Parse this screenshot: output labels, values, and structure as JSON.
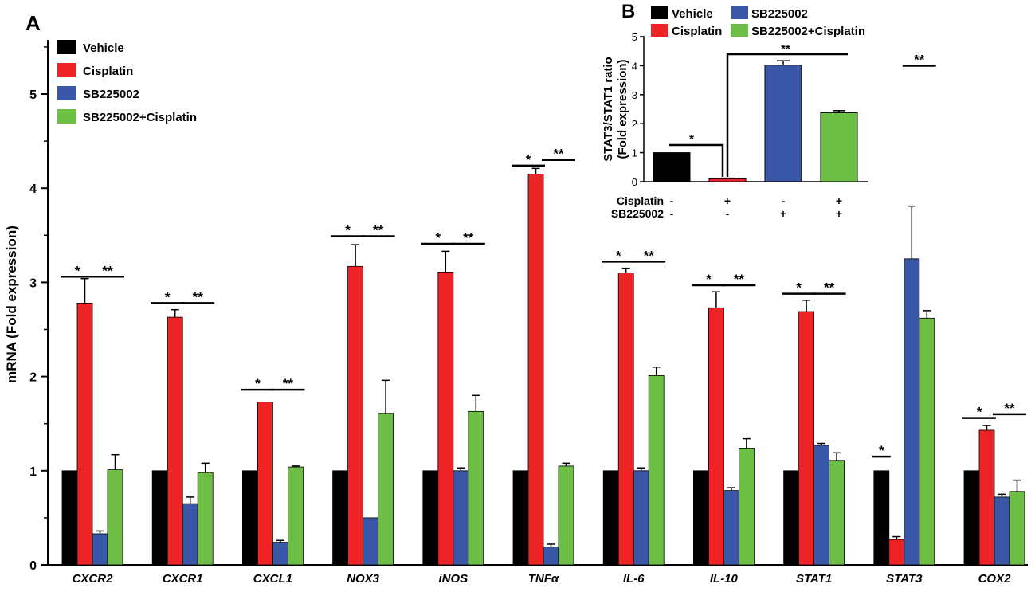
{
  "colors": {
    "vehicle": "#000000",
    "cisplatin": "#ee2326",
    "sb225002": "#3a56a6",
    "combo": "#6dbe45"
  },
  "chart_data": [
    {
      "panel": "A",
      "type": "bar",
      "ylabel": "mRNA  (Fold expression)",
      "ylim": [
        0,
        5.5
      ],
      "yticks": [
        0,
        1,
        2,
        3,
        4,
        5
      ],
      "legend_position": "top-left",
      "categories": [
        "CXCR2",
        "CXCR1",
        "CXCL1",
        "NOX3",
        "iNOS",
        "TNFα",
        "IL-6",
        "IL-10",
        "STAT1",
        "STAT3",
        "COX2"
      ],
      "series": [
        {
          "name": "Vehicle",
          "color_key": "vehicle",
          "values": [
            1,
            1,
            1,
            1,
            1,
            1,
            1,
            1,
            1,
            1,
            1
          ],
          "errors": [
            0,
            0,
            0,
            0,
            0,
            0,
            0,
            0,
            0,
            0,
            0
          ]
        },
        {
          "name": "Cisplatin",
          "color_key": "cisplatin",
          "values": [
            2.78,
            2.63,
            1.73,
            3.17,
            3.11,
            4.15,
            3.1,
            2.73,
            2.69,
            0.27,
            1.43
          ],
          "errors": [
            0.26,
            0.08,
            0.0,
            0.23,
            0.22,
            0.06,
            0.05,
            0.17,
            0.12,
            0.03,
            0.05
          ]
        },
        {
          "name": "SB225002",
          "color_key": "sb225002",
          "values": [
            0.33,
            0.65,
            0.24,
            0.5,
            1.0,
            0.19,
            1.0,
            0.79,
            1.27,
            3.25,
            0.72
          ],
          "errors": [
            0.03,
            0.07,
            0.02,
            0.0,
            0.03,
            0.03,
            0.03,
            0.03,
            0.02,
            0.56,
            0.03
          ]
        },
        {
          "name": "SB225002+Cisplatin",
          "color_key": "combo",
          "values": [
            1.01,
            0.98,
            1.04,
            1.61,
            1.63,
            1.05,
            2.01,
            1.24,
            1.11,
            2.62,
            0.78
          ],
          "errors": [
            0.16,
            0.1,
            0.01,
            0.35,
            0.17,
            0.03,
            0.09,
            0.1,
            0.08,
            0.08,
            0.12
          ]
        }
      ],
      "significance": [
        {
          "category": 0,
          "from": 0,
          "to": 1,
          "label": "*",
          "y": 3.06
        },
        {
          "category": 0,
          "from": 2,
          "to": 3,
          "label": "**",
          "y": 3.06
        },
        {
          "category": 1,
          "from": 0,
          "to": 1,
          "label": "*",
          "y": 2.78
        },
        {
          "category": 1,
          "from": 2,
          "to": 3,
          "label": "**",
          "y": 2.78
        },
        {
          "category": 2,
          "from": 0,
          "to": 1,
          "label": "*",
          "y": 1.86
        },
        {
          "category": 2,
          "from": 2,
          "to": 3,
          "label": "**",
          "y": 1.86
        },
        {
          "category": 3,
          "from": 0,
          "to": 1,
          "label": "*",
          "y": 3.49
        },
        {
          "category": 3,
          "from": 2,
          "to": 3,
          "label": "**",
          "y": 3.49
        },
        {
          "category": 4,
          "from": 0,
          "to": 1,
          "label": "*",
          "y": 3.41
        },
        {
          "category": 4,
          "from": 2,
          "to": 3,
          "label": "**",
          "y": 3.41
        },
        {
          "category": 5,
          "from": 0,
          "to": 1,
          "label": "*",
          "y": 4.24
        },
        {
          "category": 5,
          "from": 2,
          "to": 3,
          "label": "**",
          "y": 4.3
        },
        {
          "category": 6,
          "from": 0,
          "to": 1,
          "label": "*",
          "y": 3.22
        },
        {
          "category": 6,
          "from": 2,
          "to": 3,
          "label": "**",
          "y": 3.22
        },
        {
          "category": 7,
          "from": 0,
          "to": 1,
          "label": "*",
          "y": 2.97
        },
        {
          "category": 7,
          "from": 2,
          "to": 3,
          "label": "**",
          "y": 2.97
        },
        {
          "category": 8,
          "from": 0,
          "to": 1,
          "label": "*",
          "y": 2.88
        },
        {
          "category": 8,
          "from": 2,
          "to": 3,
          "label": "**",
          "y": 2.88
        },
        {
          "category": 9,
          "from": 0,
          "to": 0,
          "label": "*",
          "y": 1.15
        },
        {
          "category": 9,
          "from": 2,
          "to": 3,
          "label": "**",
          "y": 5.3
        },
        {
          "category": 10,
          "from": 0,
          "to": 1,
          "label": "*",
          "y": 1.56
        },
        {
          "category": 10,
          "from": 2,
          "to": 3,
          "label": "**",
          "y": 1.6
        }
      ]
    },
    {
      "panel": "B",
      "type": "bar",
      "ylabel": [
        "STAT3/STAT1 ratio",
        "(Fold expression)"
      ],
      "ylim": [
        0,
        5
      ],
      "yticks": [
        0,
        1,
        2,
        3,
        4,
        5
      ],
      "legend_position": "top",
      "categories": [
        "Vehicle",
        "Cisplatin",
        "SB225002",
        "SB225002+Cisplatin"
      ],
      "values": [
        1.0,
        0.1,
        4.02,
        2.38
      ],
      "errors": [
        0,
        0.02,
        0.15,
        0.07
      ],
      "color_keys": [
        "vehicle",
        "cisplatin",
        "sb225002",
        "combo"
      ],
      "treatment_table": {
        "rows": [
          {
            "label": "Cisplatin",
            "marks": [
              "-",
              "+",
              "-",
              "+"
            ]
          },
          {
            "label": "SB225002",
            "marks": [
              "-",
              "-",
              "+",
              "+"
            ]
          }
        ]
      },
      "significance": [
        {
          "label": "*",
          "from": 0,
          "to": 1
        },
        {
          "label": "**",
          "from": 1,
          "to": 3
        }
      ]
    }
  ]
}
